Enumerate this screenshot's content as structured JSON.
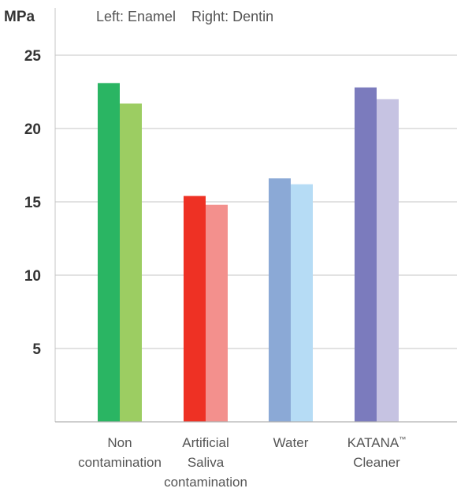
{
  "chart_data": {
    "type": "bar",
    "y_unit": "MPa",
    "legend_text": "Left: Enamel    Right: Dentin",
    "series_labels": [
      "Left: Enamel",
      "Right: Dentin"
    ],
    "categories": [
      {
        "lines": [
          "Non",
          "contamination"
        ]
      },
      {
        "lines": [
          "Artificial",
          "Saliva",
          "contamination"
        ]
      },
      {
        "lines": [
          "Water"
        ]
      },
      {
        "lines": [
          "KATANA™",
          "Cleaner"
        ]
      }
    ],
    "series": [
      {
        "name": "Enamel",
        "values": [
          23.1,
          15.4,
          16.6,
          22.8
        ]
      },
      {
        "name": "Dentin",
        "values": [
          21.7,
          14.8,
          16.2,
          22.0
        ]
      }
    ],
    "bar_colors": [
      [
        "#2ab563",
        "#9ccd62"
      ],
      [
        "#ee3124",
        "#f3908d"
      ],
      [
        "#8ba9d6",
        "#b6dcf5"
      ],
      [
        "#7b7bbd",
        "#c6c3e2"
      ]
    ],
    "y_ticks": [
      5,
      10,
      15,
      20,
      25
    ],
    "ylim": [
      0,
      25
    ],
    "grid": true,
    "legend_position": "top"
  }
}
